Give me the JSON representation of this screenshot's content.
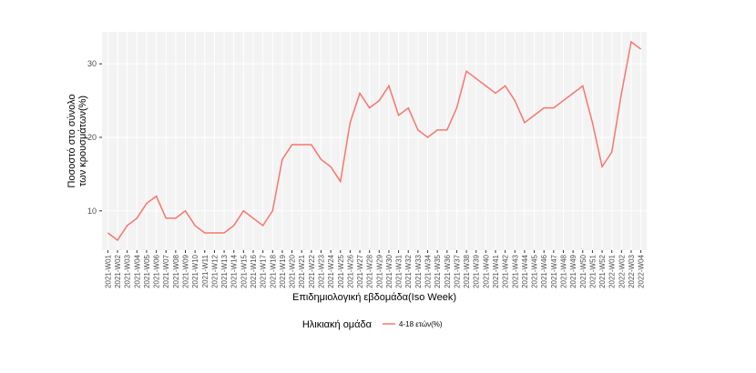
{
  "chart_data": {
    "type": "line",
    "x_label": "Επιδημιολογική εβδομάδα(Iso Week)",
    "y_label": [
      "Ποσοστό στο σύνολο",
      "των κρουσμάτων(%)"
    ],
    "legend_title": "Ηλικιακή ομάδα",
    "legend_position": "bottom",
    "grid": true,
    "categories": [
      "2021-W01",
      "2021-W02",
      "2021-W03",
      "2021-W04",
      "2021-W05",
      "2021-W06",
      "2021-W07",
      "2021-W08",
      "2021-W09",
      "2021-W10",
      "2021-W11",
      "2021-W12",
      "2021-W13",
      "2021-W14",
      "2021-W15",
      "2021-W16",
      "2021-W17",
      "2021-W18",
      "2021-W19",
      "2021-W20",
      "2021-W21",
      "2021-W22",
      "2021-W23",
      "2021-W24",
      "2021-W25",
      "2021-W26",
      "2021-W27",
      "2021-W28",
      "2021-W29",
      "2021-W30",
      "2021-W31",
      "2021-W32",
      "2021-W33",
      "2021-W34",
      "2021-W35",
      "2021-W36",
      "2021-W37",
      "2021-W38",
      "2021-W39",
      "2021-W40",
      "2021-W41",
      "2021-W42",
      "2021-W43",
      "2021-W44",
      "2021-W45",
      "2021-W46",
      "2021-W47",
      "2021-W48",
      "2021-W49",
      "2021-W50",
      "2021-W51",
      "2021-W52",
      "2022-W01",
      "2022-W02",
      "2022-W03",
      "2022-W04"
    ],
    "series": [
      {
        "name": "4-18 ετών(%)",
        "color": "#F8766D",
        "values": [
          7,
          6,
          8,
          9,
          11,
          12,
          9,
          9,
          10,
          8,
          7,
          7,
          7,
          8,
          10,
          9,
          8,
          10,
          17,
          19,
          19,
          19,
          17,
          16,
          14,
          22,
          26,
          24,
          25,
          27,
          23,
          24,
          21,
          20,
          21,
          21,
          24,
          29,
          28,
          27,
          26,
          27,
          25,
          22,
          23,
          24,
          24,
          25,
          26,
          27,
          22,
          16,
          18,
          26,
          33,
          32
        ]
      }
    ],
    "ylim": [
      4.65,
      34.35
    ],
    "yticks": [
      10,
      20,
      30
    ]
  }
}
